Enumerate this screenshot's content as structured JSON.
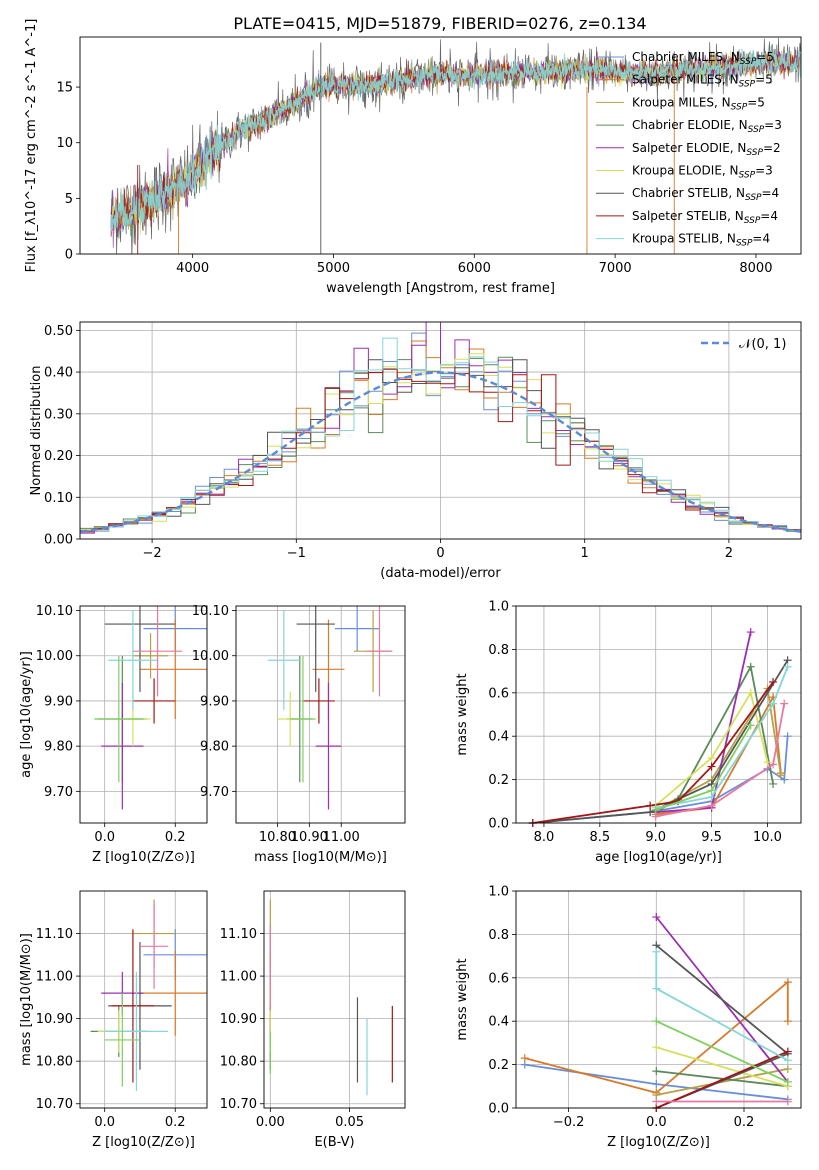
{
  "figure": {
    "title": "PLATE=0415, MJD=51879, FIBERID=0276, z=0.134"
  },
  "colors": [
    "#6a8fd8",
    "#d87a2a",
    "#b5a14a",
    "#5b8a5b",
    "#9b2fb0",
    "#d6e05e",
    "#555555",
    "#a01818",
    "#86d6d6",
    "#7ed060",
    "#e879a0"
  ],
  "chart_data": [
    {
      "id": "spectrum",
      "type": "line",
      "xlabel": "wavelength [Angstrom, rest frame]",
      "ylabel": "Flux [f_λ10^-17 erg cm^-2 s^-1 A^-1]",
      "xlim": [
        3200,
        8320
      ],
      "ylim": [
        0,
        19.5
      ],
      "xticks": [
        4000,
        5000,
        6000,
        7000,
        8000
      ],
      "yticks": [
        0,
        5,
        10,
        15
      ],
      "legend": [
        "Chabrier MILES, N_SSP=5",
        "Salpeter MILES, N_SSP=5",
        "Kroupa MILES, N_SSP=5",
        "Chabrier ELODIE, N_SSP=3",
        "Salpeter ELODIE, N_SSP=2",
        "Kroupa ELODIE, N_SSP=3",
        "Chabrier STELIB, N_SSP=4",
        "Salpeter STELIB, N_SSP=4",
        "Kroupa STELIB, N_SSP=4"
      ],
      "legend_loc": "lower right",
      "continuum": [
        [
          3420,
          3.2
        ],
        [
          3600,
          4.2
        ],
        [
          3800,
          5.5
        ],
        [
          3950,
          6.4
        ],
        [
          4100,
          8.5
        ],
        [
          4300,
          10.8
        ],
        [
          4500,
          12.0
        ],
        [
          4700,
          13.4
        ],
        [
          4900,
          15.0
        ],
        [
          5100,
          15.3
        ],
        [
          5300,
          15.2
        ],
        [
          5500,
          15.6
        ],
        [
          5700,
          16.2
        ],
        [
          5900,
          16.0
        ],
        [
          6100,
          16.2
        ],
        [
          6300,
          16.3
        ],
        [
          6600,
          16.4
        ],
        [
          6900,
          16.5
        ],
        [
          7100,
          16.2
        ],
        [
          7400,
          16.4
        ],
        [
          7700,
          16.8
        ],
        [
          8000,
          17.1
        ],
        [
          8320,
          17.2
        ]
      ],
      "grid": false
    },
    {
      "id": "residuals",
      "type": "line",
      "xlabel": "(data-model)/error",
      "ylabel": "Normed distribution",
      "xlim": [
        -2.5,
        2.5
      ],
      "ylim": [
        0,
        0.52
      ],
      "xticks": [
        -2,
        -1,
        0,
        1,
        2
      ],
      "yticks": [
        0.0,
        0.1,
        0.2,
        0.3,
        0.4,
        0.5
      ],
      "legend": [
        "N(0,1)"
      ],
      "legend_loc": "upper right",
      "grid": true
    },
    {
      "id": "age-vs-Z",
      "type": "scatter",
      "xlabel": "Z [log10(Z/Z⊙)]",
      "ylabel": "age  [log10(age/yr)]",
      "xlim": [
        -0.07,
        0.29
      ],
      "ylim": [
        9.63,
        10.11
      ],
      "xticks": [
        0.0,
        0.2
      ],
      "yticks": [
        9.7,
        9.8,
        9.9,
        10.0,
        10.1
      ],
      "points": [
        {
          "x": 0.2,
          "y": 10.06,
          "xerr": 0.09,
          "yerr": 0.05
        },
        {
          "x": 0.2,
          "y": 9.97,
          "xerr": 0.1,
          "yerr": 0.11
        },
        {
          "x": 0.13,
          "y": 10.0,
          "xerr": 0.05,
          "yerr": 0.05
        },
        {
          "x": 0.05,
          "y": 9.86,
          "xerr": 0.07,
          "yerr": 0.14
        },
        {
          "x": 0.05,
          "y": 9.8,
          "xerr": 0.06,
          "yerr": 0.14
        },
        {
          "x": 0.08,
          "y": 9.86,
          "xerr": 0.05,
          "yerr": 0.06
        },
        {
          "x": 0.1,
          "y": 10.07,
          "xerr": 0.1,
          "yerr": 0.15
        },
        {
          "x": 0.14,
          "y": 9.9,
          "xerr": 0.06,
          "yerr": 0.05
        },
        {
          "x": 0.08,
          "y": 9.99,
          "xerr": 0.07,
          "yerr": 0.11
        },
        {
          "x": 0.04,
          "y": 9.86,
          "xerr": 0.07,
          "yerr": 0.14
        },
        {
          "x": 0.15,
          "y": 10.01,
          "xerr": 0.07,
          "yerr": 0.1
        }
      ],
      "grid": true
    },
    {
      "id": "age-vs-mass",
      "type": "scatter",
      "xlabel": "mass [log10(M/M⊙)]",
      "ylabel": "",
      "xlim": [
        10.67,
        11.2
      ],
      "ylim": [
        9.63,
        10.11
      ],
      "xticks": [
        10.8,
        10.9,
        11.0
      ],
      "yticks": [
        9.7,
        9.8,
        9.9,
        10.0,
        10.1
      ],
      "points": [
        {
          "x": 11.05,
          "y": 10.06,
          "xerr": 0.07,
          "yerr": 0.05
        },
        {
          "x": 10.96,
          "y": 9.97,
          "xerr": 0.05,
          "yerr": 0.11
        },
        {
          "x": 11.1,
          "y": 10.01,
          "xerr": 0.06,
          "yerr": 0.09
        },
        {
          "x": 10.87,
          "y": 9.86,
          "xerr": 0.04,
          "yerr": 0.14
        },
        {
          "x": 10.96,
          "y": 9.8,
          "xerr": 0.04,
          "yerr": 0.14
        },
        {
          "x": 10.84,
          "y": 9.86,
          "xerr": 0.04,
          "yerr": 0.06
        },
        {
          "x": 10.92,
          "y": 10.07,
          "xerr": 0.06,
          "yerr": 0.15
        },
        {
          "x": 10.93,
          "y": 9.9,
          "xerr": 0.05,
          "yerr": 0.05
        },
        {
          "x": 10.82,
          "y": 9.99,
          "xerr": 0.05,
          "yerr": 0.11
        },
        {
          "x": 10.88,
          "y": 9.86,
          "xerr": 0.04,
          "yerr": 0.14
        },
        {
          "x": 11.12,
          "y": 10.01,
          "xerr": 0.04,
          "yerr": 0.1
        }
      ],
      "grid": true
    },
    {
      "id": "mass-weight-vs-age",
      "type": "line",
      "xlabel": "age  [log10(age/yr)]",
      "ylabel": "mass weight",
      "xlim": [
        7.75,
        10.3
      ],
      "ylim": [
        0.0,
        1.0
      ],
      "xticks": [
        8.0,
        8.5,
        9.0,
        9.5,
        10.0
      ],
      "yticks": [
        0.0,
        0.2,
        0.4,
        0.6,
        0.8,
        1.0
      ],
      "series": [
        {
          "x": [
            7.9,
            8.95,
            9.5,
            10.0,
            10.15,
            10.18
          ],
          "y": [
            0.0,
            0.05,
            0.1,
            0.25,
            0.2,
            0.4
          ]
        },
        {
          "x": [
            9.0,
            9.5,
            10.05,
            10.12
          ],
          "y": [
            0.04,
            0.07,
            0.58,
            0.23
          ]
        },
        {
          "x": [
            9.0,
            9.5,
            10.0,
            10.12
          ],
          "y": [
            0.06,
            0.2,
            0.62,
            0.22
          ]
        },
        {
          "x": [
            9.0,
            9.2,
            9.85,
            10.05
          ],
          "y": [
            0.05,
            0.11,
            0.72,
            0.18
          ]
        },
        {
          "x": [
            9.0,
            9.5,
            9.85
          ],
          "y": [
            0.05,
            0.07,
            0.88
          ]
        },
        {
          "x": [
            9.0,
            9.5,
            9.85,
            10.0
          ],
          "y": [
            0.08,
            0.3,
            0.6,
            0.28
          ]
        },
        {
          "x": [
            7.9,
            8.95,
            9.5,
            10.18
          ],
          "y": [
            0.0,
            0.05,
            0.18,
            0.75
          ]
        },
        {
          "x": [
            7.9,
            8.95,
            9.2,
            9.5,
            10.05
          ],
          "y": [
            0.0,
            0.08,
            0.1,
            0.26,
            0.65
          ]
        },
        {
          "x": [
            9.0,
            9.5,
            10.05,
            10.18
          ],
          "y": [
            0.07,
            0.12,
            0.55,
            0.72
          ]
        },
        {
          "x": [
            9.0,
            9.5,
            9.85
          ],
          "y": [
            0.06,
            0.15,
            0.45
          ]
        },
        {
          "x": [
            9.0,
            9.5,
            10.05,
            10.15
          ],
          "y": [
            0.03,
            0.08,
            0.27,
            0.55
          ]
        }
      ],
      "grid": true
    },
    {
      "id": "mass-vs-Z",
      "type": "scatter",
      "xlabel": "Z [log10(Z/Z⊙)]",
      "ylabel": "mass [log10(M/M⊙)]",
      "xlim": [
        -0.07,
        0.29
      ],
      "ylim": [
        10.69,
        11.2
      ],
      "xticks": [
        0.0,
        0.2
      ],
      "yticks": [
        10.7,
        10.8,
        10.9,
        11.0,
        11.1
      ],
      "points": [
        {
          "x": 0.2,
          "y": 11.05,
          "xerr": 0.09,
          "yerr": 0.06
        },
        {
          "x": 0.2,
          "y": 10.96,
          "xerr": 0.1,
          "yerr": 0.1
        },
        {
          "x": 0.14,
          "y": 11.1,
          "xerr": 0.06,
          "yerr": 0.08
        },
        {
          "x": 0.04,
          "y": 10.87,
          "xerr": 0.08,
          "yerr": 0.06
        },
        {
          "x": 0.05,
          "y": 10.96,
          "xerr": 0.06,
          "yerr": 0.05
        },
        {
          "x": 0.04,
          "y": 10.87,
          "xerr": 0.06,
          "yerr": 0.05
        },
        {
          "x": 0.1,
          "y": 10.93,
          "xerr": 0.09,
          "yerr": 0.15
        },
        {
          "x": 0.08,
          "y": 10.93,
          "xerr": 0.06,
          "yerr": 0.18
        },
        {
          "x": 0.09,
          "y": 10.87,
          "xerr": 0.09,
          "yerr": 0.14
        },
        {
          "x": 0.05,
          "y": 10.85,
          "xerr": 0.05,
          "yerr": 0.11
        },
        {
          "x": 0.14,
          "y": 11.07,
          "xerr": 0.04,
          "yerr": 0.1
        }
      ],
      "grid": true
    },
    {
      "id": "mass-vs-EBV",
      "type": "scatter",
      "xlabel": "E(B-V)",
      "ylabel": "",
      "xlim": [
        -0.004,
        0.085
      ],
      "ylim": [
        10.69,
        11.2
      ],
      "xticks": [
        0.0,
        0.05
      ],
      "yticks": [
        10.7,
        10.8,
        10.9,
        11.0,
        11.1
      ],
      "points": [
        {
          "x": 0.0,
          "y": 11.05,
          "yerr": 0.06
        },
        {
          "x": 0.0,
          "y": 10.96,
          "yerr": 0.1
        },
        {
          "x": 0.0,
          "y": 11.1,
          "yerr": 0.08
        },
        {
          "x": 0.0,
          "y": 10.87,
          "yerr": 0.06
        },
        {
          "x": 0.0,
          "y": 10.84,
          "yerr": 0.06
        },
        {
          "x": 0.0,
          "y": 10.87,
          "yerr": 0.05
        },
        {
          "x": 0.055,
          "y": 10.85,
          "yerr": 0.1
        },
        {
          "x": 0.077,
          "y": 10.84,
          "yerr": 0.09
        },
        {
          "x": 0.061,
          "y": 10.81,
          "yerr": 0.09
        },
        {
          "x": 0.0,
          "y": 10.82,
          "yerr": 0.05
        },
        {
          "x": 0.0,
          "y": 11.02,
          "yerr": 0.1
        }
      ],
      "grid": true
    },
    {
      "id": "mass-weight-vs-Z",
      "type": "line",
      "xlabel": "Z [log10(Z/Z⊙)]",
      "ylabel": "mass weight",
      "xlim": [
        -0.32,
        0.33
      ],
      "ylim": [
        0.0,
        1.0
      ],
      "xticks": [
        -0.2,
        0.0,
        0.2
      ],
      "yticks": [
        0.0,
        0.2,
        0.4,
        0.6,
        0.8,
        1.0
      ],
      "series": [
        {
          "x": [
            -0.3,
            0.0,
            0.3
          ],
          "y": [
            0.2,
            0.11,
            0.04
          ]
        },
        {
          "x": [
            -0.3,
            0.0,
            0.3,
            0.3
          ],
          "y": [
            0.23,
            0.07,
            0.58,
            0.4
          ]
        },
        {
          "x": [
            0.0,
            0.3
          ],
          "y": [
            0.06,
            0.18
          ]
        },
        {
          "x": [
            0.0,
            0.3
          ],
          "y": [
            0.17,
            0.1
          ]
        },
        {
          "x": [
            0.0,
            0.3
          ],
          "y": [
            0.88,
            0.12
          ]
        },
        {
          "x": [
            0.0,
            0.3
          ],
          "y": [
            0.28,
            0.1
          ]
        },
        {
          "x": [
            0.0,
            0.3,
            0.0
          ],
          "y": [
            0.75,
            0.25,
            0.0
          ]
        },
        {
          "x": [
            0.0,
            0.3
          ],
          "y": [
            0.0,
            0.26
          ]
        },
        {
          "x": [
            0.0,
            0.0,
            0.3
          ],
          "y": [
            0.72,
            0.55,
            0.22
          ]
        },
        {
          "x": [
            0.0,
            0.3
          ],
          "y": [
            0.4,
            0.12
          ]
        },
        {
          "x": [
            0.0,
            0.3
          ],
          "y": [
            0.03,
            0.03
          ]
        }
      ],
      "grid": true
    }
  ]
}
